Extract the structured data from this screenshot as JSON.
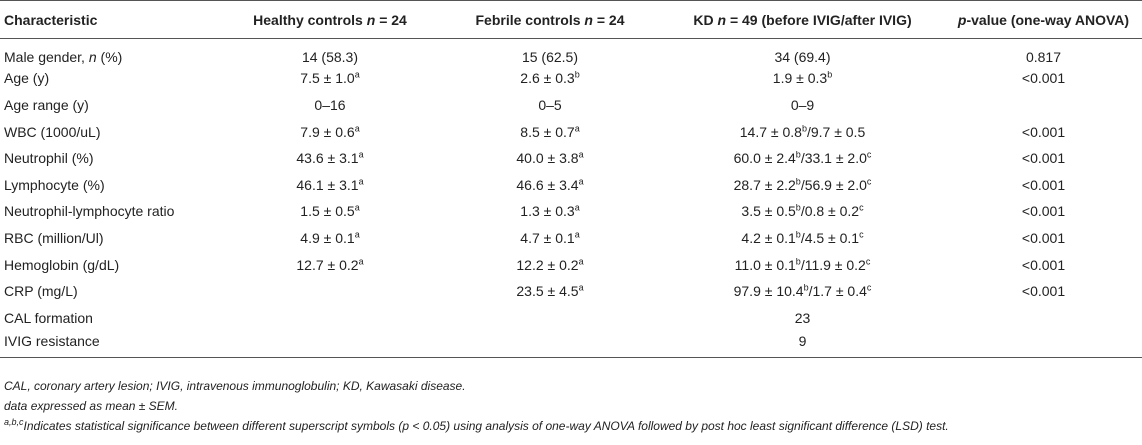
{
  "header": {
    "characteristic": "Characteristic",
    "healthy_prefix": "Healthy controls ",
    "healthy_n": "n",
    "healthy_suffix": " = 24",
    "febrile_prefix": "Febrile controls ",
    "febrile_n": "n",
    "febrile_suffix": " = 24",
    "kd_prefix": "KD ",
    "kd_n": "n",
    "kd_suffix": " = 49 (before IVIG/after IVIG)",
    "p_italic": "p",
    "p_suffix": "-value (one-way ANOVA)"
  },
  "rows": [
    {
      "label": "Male gender, ",
      "label_italic": "n",
      "label_suffix": " (%)",
      "healthy": "14 (58.3)",
      "healthy_sup": "",
      "febrile": "15 (62.5)",
      "febrile_sup": "",
      "kd_before": "34 (69.4)",
      "kd_before_sup": "",
      "kd_after": "",
      "kd_after_sup": "",
      "p": "0.817"
    },
    {
      "label": "Age (y)",
      "label_italic": "",
      "label_suffix": "",
      "healthy": "7.5 ± 1.0",
      "healthy_sup": "a",
      "febrile": "2.6 ± 0.3",
      "febrile_sup": "b",
      "kd_before": "1.9 ± 0.3",
      "kd_before_sup": "b",
      "kd_after": "",
      "kd_after_sup": "",
      "p": "<0.001"
    },
    {
      "label": "Age range (y)",
      "label_italic": "",
      "label_suffix": "",
      "healthy": "0–16",
      "healthy_sup": "",
      "febrile": "0–5",
      "febrile_sup": "",
      "kd_before": "0–9",
      "kd_before_sup": "",
      "kd_after": "",
      "kd_after_sup": "",
      "p": ""
    },
    {
      "label": "WBC (1000/uL)",
      "label_italic": "",
      "label_suffix": "",
      "healthy": "7.9 ± 0.6",
      "healthy_sup": "a",
      "febrile": "8.5 ± 0.7",
      "febrile_sup": "a",
      "kd_before": "14.7 ± 0.8",
      "kd_before_sup": "b",
      "kd_after": "/9.7 ± 0.5",
      "kd_after_sup": "",
      "p": "<0.001"
    },
    {
      "label": "Neutrophil (%)",
      "label_italic": "",
      "label_suffix": "",
      "healthy": "43.6 ± 3.1",
      "healthy_sup": "a",
      "febrile": "40.0 ± 3.8",
      "febrile_sup": "a",
      "kd_before": "60.0 ± 2.4",
      "kd_before_sup": "b",
      "kd_after": "/33.1 ± 2.0",
      "kd_after_sup": "c",
      "p": "<0.001"
    },
    {
      "label": "Lymphocyte (%)",
      "label_italic": "",
      "label_suffix": "",
      "healthy": "46.1 ± 3.1",
      "healthy_sup": "a",
      "febrile": "46.6 ± 3.4",
      "febrile_sup": "a",
      "kd_before": "28.7 ± 2.2",
      "kd_before_sup": "b",
      "kd_after": "/56.9 ± 2.0",
      "kd_after_sup": "c",
      "p": "<0.001"
    },
    {
      "label": "Neutrophil-lymphocyte ratio",
      "label_italic": "",
      "label_suffix": "",
      "healthy": "1.5 ± 0.5",
      "healthy_sup": "a",
      "febrile": "1.3 ± 0.3",
      "febrile_sup": "a",
      "kd_before": "3.5 ± 0.5",
      "kd_before_sup": "b",
      "kd_after": "/0.8 ± 0.2",
      "kd_after_sup": "c",
      "p": "<0.001"
    },
    {
      "label": "RBC (million/Ul)",
      "label_italic": "",
      "label_suffix": "",
      "healthy": "4.9 ± 0.1",
      "healthy_sup": "a",
      "febrile": "4.7 ± 0.1",
      "febrile_sup": "a",
      "kd_before": "4.2 ± 0.1",
      "kd_before_sup": "b",
      "kd_after": "/4.5 ± 0.1",
      "kd_after_sup": "c",
      "p": "<0.001"
    },
    {
      "label": "Hemoglobin (g/dL)",
      "label_italic": "",
      "label_suffix": "",
      "healthy": "12.7 ± 0.2",
      "healthy_sup": "a",
      "febrile": "12.2 ± 0.2",
      "febrile_sup": "a",
      "kd_before": "11.0 ± 0.1",
      "kd_before_sup": "b",
      "kd_after": "/11.9 ± 0.2",
      "kd_after_sup": "c",
      "p": "<0.001"
    },
    {
      "label": "CRP (mg/L)",
      "label_italic": "",
      "label_suffix": "",
      "healthy": "",
      "healthy_sup": "",
      "febrile": "23.5 ± 4.5",
      "febrile_sup": "a",
      "kd_before": "97.9 ± 10.4",
      "kd_before_sup": "b",
      "kd_after": "/1.7 ± 0.4",
      "kd_after_sup": "c",
      "p": "<0.001"
    },
    {
      "label": "CAL formation",
      "label_italic": "",
      "label_suffix": "",
      "healthy": "",
      "healthy_sup": "",
      "febrile": "",
      "febrile_sup": "",
      "kd_before": "23",
      "kd_before_sup": "",
      "kd_after": "",
      "kd_after_sup": "",
      "p": ""
    },
    {
      "label": "IVIG resistance",
      "label_italic": "",
      "label_suffix": "",
      "healthy": "",
      "healthy_sup": "",
      "febrile": "",
      "febrile_sup": "",
      "kd_before": "9",
      "kd_before_sup": "",
      "kd_after": "",
      "kd_after_sup": "",
      "p": ""
    }
  ],
  "notes": {
    "abbreviations": "CAL, coronary artery lesion; IVIG, intravenous immunoglobulin; KD, Kawasaki disease.",
    "data_note": "data expressed as mean ± SEM.",
    "sig_sup": "a,b,c",
    "sig_text_1": "Indicates statistical significance between different superscript symbols (",
    "sig_p": "p",
    "sig_text_2": " < 0.05) using analysis of one-way ANOVA followed by post hoc least significant difference (LSD) test."
  }
}
